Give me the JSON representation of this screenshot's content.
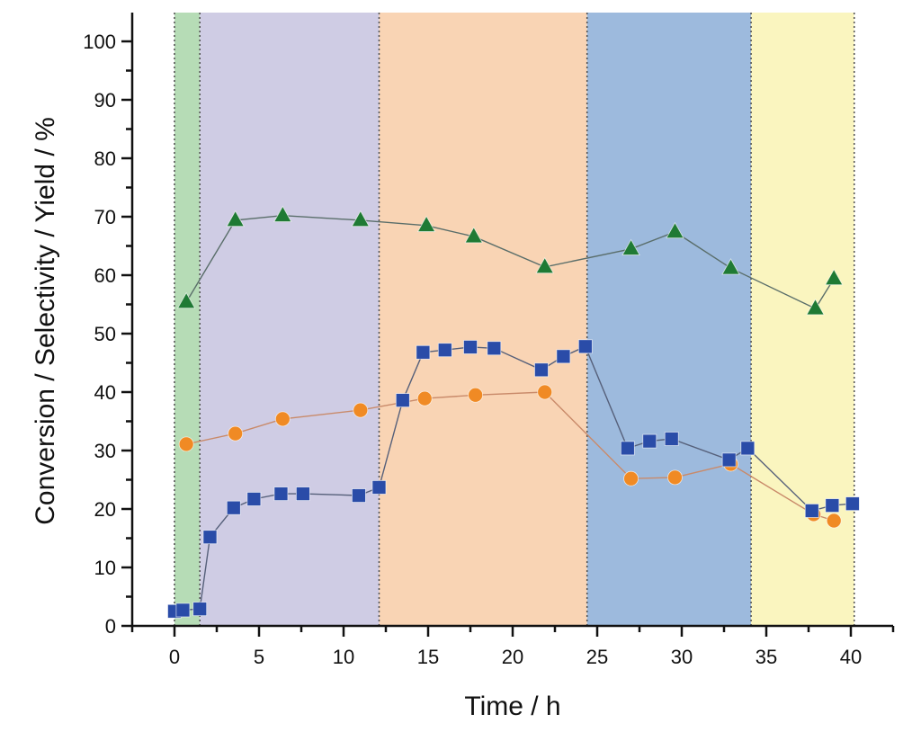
{
  "chart_data": {
    "type": "scatter",
    "title": "",
    "xlabel": "Time / h",
    "ylabel": "Conversion / Selectivity / Yield / %",
    "xlim": [
      -2.5,
      42.5
    ],
    "ylim": [
      0,
      105
    ],
    "x_ticks": [
      0,
      5,
      10,
      15,
      20,
      25,
      30,
      35,
      40
    ],
    "x_tick_labels": [
      "0",
      "5",
      "10",
      "15",
      "20",
      "25",
      "30",
      "35",
      "40"
    ],
    "y_ticks": [
      0,
      10,
      20,
      30,
      40,
      50,
      60,
      70,
      80,
      90,
      100
    ],
    "y_tick_labels": [
      "0",
      "10",
      "20",
      "30",
      "40",
      "50",
      "60",
      "70",
      "80",
      "90",
      "100"
    ],
    "grid": false,
    "legend": "none",
    "regions": [
      {
        "x_start": 0,
        "x_end": 1.5,
        "color": "#b6dcb6"
      },
      {
        "x_start": 1.5,
        "x_end": 12.1,
        "color": "#cfcce4"
      },
      {
        "x_start": 12.1,
        "x_end": 24.4,
        "color": "#f9d4b4"
      },
      {
        "x_start": 24.4,
        "x_end": 34.1,
        "color": "#9dbadd"
      },
      {
        "x_start": 34.1,
        "x_end": 40.2,
        "color": "#faf5bf"
      }
    ],
    "series": [
      {
        "name": "triangle-series",
        "marker": "triangle",
        "color": "#1f7a34",
        "line_color": "#5a6e6a",
        "x": [
          0.7,
          3.6,
          6.4,
          11.0,
          14.9,
          17.7,
          21.9,
          27.0,
          29.6,
          32.9,
          37.9,
          39.0
        ],
        "y": [
          55.4,
          69.4,
          70.2,
          69.4,
          68.5,
          66.6,
          61.4,
          64.5,
          67.4,
          61.2,
          54.3,
          59.4
        ]
      },
      {
        "name": "square-series",
        "marker": "square",
        "color": "#2a4ca8",
        "line_color": "#56607a",
        "x": [
          0.0,
          0.5,
          1.5,
          2.1,
          3.5,
          4.7,
          6.3,
          7.6,
          10.9,
          12.1,
          13.5,
          14.7,
          16.0,
          17.5,
          18.9,
          21.7,
          23.0,
          24.3,
          26.8,
          28.1,
          29.4,
          32.8,
          33.9,
          37.7,
          38.9,
          40.1
        ],
        "y": [
          2.5,
          2.7,
          2.9,
          15.2,
          20.2,
          21.7,
          22.6,
          22.6,
          22.3,
          23.7,
          38.6,
          46.8,
          47.2,
          47.7,
          47.5,
          43.8,
          46.1,
          47.8,
          30.4,
          31.6,
          32.0,
          28.4,
          30.4,
          19.7,
          20.6,
          20.9
        ]
      },
      {
        "name": "circle-series",
        "marker": "circle",
        "color": "#f08a24",
        "line_color": "#c98a6a",
        "x": [
          0.7,
          3.6,
          6.4,
          11.0,
          14.8,
          17.8,
          21.9,
          27.0,
          29.6,
          32.9,
          37.8,
          39.0
        ],
        "y": [
          31.1,
          32.9,
          35.4,
          36.9,
          38.9,
          39.5,
          40.0,
          25.2,
          25.4,
          27.7,
          19.1,
          18.0
        ]
      }
    ]
  }
}
